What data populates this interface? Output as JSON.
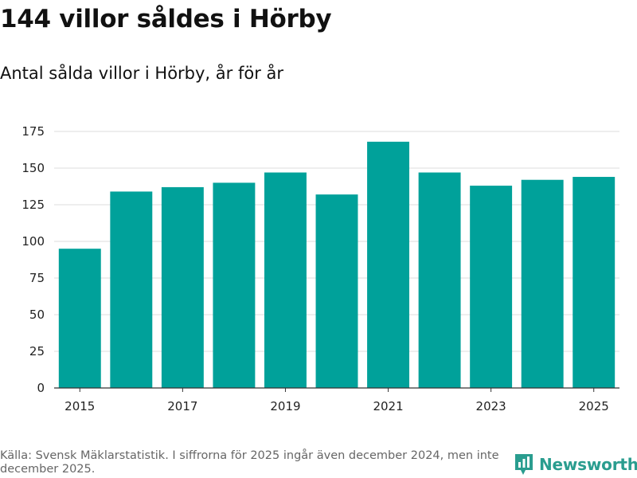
{
  "header": {
    "title": "144 villor såldes i Hörby",
    "subtitle": "Antal sålda villor i Hörby, år för år"
  },
  "footer": {
    "source": "Källa: Svensk Mäklarstatistik. I siffrorna för 2025 ingår även december 2024, men inte december 2025.",
    "brand": "Newsworthy"
  },
  "colors": {
    "bar": "#00a19a",
    "grid": "#dddddd",
    "axis": "#333333",
    "brand": "#2a9d8f"
  },
  "chart_data": {
    "type": "bar",
    "title": "144 villor såldes i Hörby",
    "subtitle": "Antal sålda villor i Hörby, år för år",
    "xlabel": "",
    "ylabel": "",
    "categories": [
      "2015",
      "2016",
      "2017",
      "2018",
      "2019",
      "2020",
      "2021",
      "2022",
      "2023",
      "2024",
      "2025"
    ],
    "values": [
      95,
      134,
      137,
      140,
      147,
      132,
      168,
      147,
      138,
      142,
      144
    ],
    "ylim": [
      0,
      175
    ],
    "yticks": [
      0,
      25,
      50,
      75,
      100,
      125,
      150,
      175
    ],
    "xtick_labels": [
      "2015",
      "2017",
      "2019",
      "2021",
      "2023",
      "2025"
    ],
    "grid": true
  }
}
